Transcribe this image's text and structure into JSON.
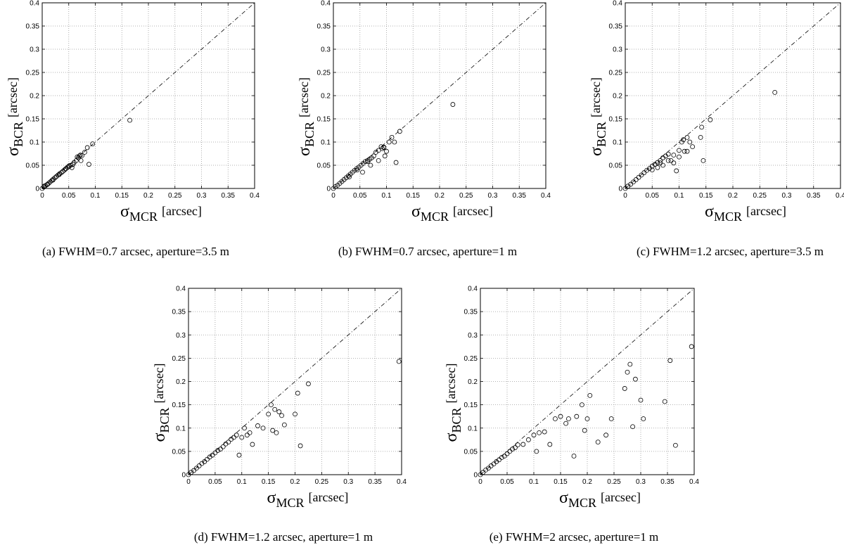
{
  "figure": {
    "axis_label_unit": "[arcsec]",
    "x_symbol": "σ",
    "x_subscript": "MCR",
    "y_symbol": "σ",
    "y_subscript": "BCR"
  },
  "chart_data": [
    {
      "id": "a",
      "type": "scatter",
      "caption": "(a)  FWHM=0.7 arcsec, aperture=3.5 m",
      "xlim": [
        0,
        0.4
      ],
      "ylim": [
        0,
        0.4
      ],
      "ticks": [
        "0",
        "0.05",
        "0.1",
        "0.15",
        "0.2",
        "0.25",
        "0.3",
        "0.35",
        "0.4"
      ],
      "grid": true,
      "reference_line": "y = x (dash-dot)",
      "points": [
        [
          0,
          0
        ],
        [
          0.003,
          0.003
        ],
        [
          0.006,
          0.006
        ],
        [
          0.009,
          0.008
        ],
        [
          0.012,
          0.011
        ],
        [
          0.015,
          0.014
        ],
        [
          0.018,
          0.017
        ],
        [
          0.021,
          0.02
        ],
        [
          0.024,
          0.023
        ],
        [
          0.027,
          0.026
        ],
        [
          0.03,
          0.029
        ],
        [
          0.033,
          0.032
        ],
        [
          0.036,
          0.034
        ],
        [
          0.039,
          0.037
        ],
        [
          0.042,
          0.04
        ],
        [
          0.045,
          0.043
        ],
        [
          0.048,
          0.046
        ],
        [
          0.051,
          0.049
        ],
        [
          0.054,
          0.05
        ],
        [
          0.058,
          0.052
        ],
        [
          0.06,
          0.056
        ],
        [
          0.064,
          0.06
        ],
        [
          0.068,
          0.066
        ],
        [
          0.07,
          0.07
        ],
        [
          0.072,
          0.072
        ],
        [
          0.075,
          0.071
        ],
        [
          0.08,
          0.078
        ],
        [
          0.085,
          0.088
        ],
        [
          0.088,
          0.052
        ],
        [
          0.095,
          0.096
        ],
        [
          0.165,
          0.147
        ],
        [
          0.004,
          0.005
        ],
        [
          0.01,
          0.009
        ],
        [
          0.02,
          0.018
        ],
        [
          0.032,
          0.03
        ],
        [
          0.044,
          0.042
        ],
        [
          0.05,
          0.047
        ],
        [
          0.056,
          0.045
        ],
        [
          0.066,
          0.068
        ],
        [
          0.073,
          0.06
        ]
      ]
    },
    {
      "id": "b",
      "type": "scatter",
      "caption": "(b)  FWHM=0.7 arcsec, aperture=1 m",
      "xlim": [
        0,
        0.4
      ],
      "ylim": [
        0,
        0.4
      ],
      "ticks": [
        "0",
        "0.05",
        "0.1",
        "0.15",
        "0.2",
        "0.25",
        "0.3",
        "0.35",
        "0.4"
      ],
      "grid": true,
      "reference_line": "y = x (dash-dot)",
      "points": [
        [
          0,
          0
        ],
        [
          0.004,
          0.004
        ],
        [
          0.008,
          0.007
        ],
        [
          0.012,
          0.011
        ],
        [
          0.016,
          0.015
        ],
        [
          0.02,
          0.019
        ],
        [
          0.024,
          0.023
        ],
        [
          0.028,
          0.027
        ],
        [
          0.032,
          0.031
        ],
        [
          0.036,
          0.035
        ],
        [
          0.04,
          0.039
        ],
        [
          0.044,
          0.043
        ],
        [
          0.048,
          0.046
        ],
        [
          0.052,
          0.05
        ],
        [
          0.056,
          0.054
        ],
        [
          0.06,
          0.058
        ],
        [
          0.064,
          0.06
        ],
        [
          0.068,
          0.063
        ],
        [
          0.072,
          0.066
        ],
        [
          0.076,
          0.07
        ],
        [
          0.08,
          0.078
        ],
        [
          0.085,
          0.082
        ],
        [
          0.09,
          0.09
        ],
        [
          0.092,
          0.086
        ],
        [
          0.095,
          0.089
        ],
        [
          0.097,
          0.07
        ],
        [
          0.1,
          0.08
        ],
        [
          0.105,
          0.1
        ],
        [
          0.11,
          0.11
        ],
        [
          0.115,
          0.1
        ],
        [
          0.118,
          0.056
        ],
        [
          0.125,
          0.123
        ],
        [
          0.225,
          0.181
        ],
        [
          0.055,
          0.035
        ],
        [
          0.045,
          0.04
        ],
        [
          0.07,
          0.05
        ],
        [
          0.085,
          0.06
        ],
        [
          0.03,
          0.025
        ],
        [
          0.065,
          0.058
        ],
        [
          0.095,
          0.088
        ]
      ]
    },
    {
      "id": "c",
      "type": "scatter",
      "caption": "(c)  FWHM=1.2 arcsec, aperture=3.5 m",
      "xlim": [
        0,
        0.4
      ],
      "ylim": [
        0,
        0.4
      ],
      "ticks": [
        "0",
        "0.05",
        "0.1",
        "0.15",
        "0.2",
        "0.25",
        "0.3",
        "0.35",
        "0.4"
      ],
      "grid": true,
      "reference_line": "y = x (dash-dot)",
      "points": [
        [
          0,
          0
        ],
        [
          0.005,
          0.005
        ],
        [
          0.01,
          0.009
        ],
        [
          0.015,
          0.014
        ],
        [
          0.02,
          0.019
        ],
        [
          0.025,
          0.024
        ],
        [
          0.03,
          0.029
        ],
        [
          0.035,
          0.034
        ],
        [
          0.04,
          0.039
        ],
        [
          0.045,
          0.043
        ],
        [
          0.05,
          0.048
        ],
        [
          0.055,
          0.052
        ],
        [
          0.06,
          0.056
        ],
        [
          0.065,
          0.06
        ],
        [
          0.07,
          0.066
        ],
        [
          0.075,
          0.07
        ],
        [
          0.08,
          0.074
        ],
        [
          0.085,
          0.06
        ],
        [
          0.09,
          0.072
        ],
        [
          0.095,
          0.038
        ],
        [
          0.1,
          0.082
        ],
        [
          0.105,
          0.1
        ],
        [
          0.108,
          0.105
        ],
        [
          0.11,
          0.08
        ],
        [
          0.115,
          0.11
        ],
        [
          0.12,
          0.1
        ],
        [
          0.125,
          0.09
        ],
        [
          0.14,
          0.11
        ],
        [
          0.142,
          0.132
        ],
        [
          0.145,
          0.06
        ],
        [
          0.158,
          0.148
        ],
        [
          0.278,
          0.207
        ],
        [
          0.06,
          0.045
        ],
        [
          0.07,
          0.05
        ],
        [
          0.08,
          0.06
        ],
        [
          0.09,
          0.055
        ],
        [
          0.115,
          0.08
        ],
        [
          0.05,
          0.04
        ],
        [
          0.065,
          0.055
        ],
        [
          0.1,
          0.068
        ]
      ]
    },
    {
      "id": "d",
      "type": "scatter",
      "caption": "(d)  FWHM=1.2 arcsec, aperture=1 m",
      "xlim": [
        0,
        0.4
      ],
      "ylim": [
        0,
        0.4
      ],
      "ticks": [
        "0",
        "0.05",
        "0.1",
        "0.15",
        "0.2",
        "0.25",
        "0.3",
        "0.35",
        "0.4"
      ],
      "grid": true,
      "reference_line": "y = x (dash-dot)",
      "points": [
        [
          0,
          0
        ],
        [
          0.005,
          0.005
        ],
        [
          0.01,
          0.009
        ],
        [
          0.015,
          0.014
        ],
        [
          0.02,
          0.019
        ],
        [
          0.025,
          0.024
        ],
        [
          0.03,
          0.028
        ],
        [
          0.035,
          0.033
        ],
        [
          0.04,
          0.038
        ],
        [
          0.045,
          0.042
        ],
        [
          0.05,
          0.047
        ],
        [
          0.055,
          0.052
        ],
        [
          0.06,
          0.055
        ],
        [
          0.065,
          0.06
        ],
        [
          0.07,
          0.066
        ],
        [
          0.075,
          0.07
        ],
        [
          0.08,
          0.076
        ],
        [
          0.085,
          0.08
        ],
        [
          0.09,
          0.085
        ],
        [
          0.095,
          0.042
        ],
        [
          0.1,
          0.08
        ],
        [
          0.105,
          0.1
        ],
        [
          0.11,
          0.085
        ],
        [
          0.115,
          0.09
        ],
        [
          0.12,
          0.065
        ],
        [
          0.13,
          0.105
        ],
        [
          0.14,
          0.1
        ],
        [
          0.15,
          0.13
        ],
        [
          0.155,
          0.15
        ],
        [
          0.158,
          0.095
        ],
        [
          0.162,
          0.14
        ],
        [
          0.165,
          0.09
        ],
        [
          0.17,
          0.135
        ],
        [
          0.175,
          0.127
        ],
        [
          0.18,
          0.107
        ],
        [
          0.2,
          0.13
        ],
        [
          0.205,
          0.175
        ],
        [
          0.21,
          0.062
        ],
        [
          0.225,
          0.195
        ],
        [
          0.395,
          0.243
        ]
      ]
    },
    {
      "id": "e",
      "type": "scatter",
      "caption": "(e)  FWHM=2 arcsec, aperture=1 m",
      "xlim": [
        0,
        0.4
      ],
      "ylim": [
        0,
        0.4
      ],
      "ticks": [
        "0",
        "0.05",
        "0.1",
        "0.15",
        "0.2",
        "0.25",
        "0.3",
        "0.35",
        "0.4"
      ],
      "grid": true,
      "reference_line": "y = x (dash-dot)",
      "points": [
        [
          0,
          0
        ],
        [
          0.005,
          0.005
        ],
        [
          0.01,
          0.01
        ],
        [
          0.015,
          0.014
        ],
        [
          0.02,
          0.019
        ],
        [
          0.025,
          0.023
        ],
        [
          0.03,
          0.028
        ],
        [
          0.035,
          0.032
        ],
        [
          0.04,
          0.037
        ],
        [
          0.045,
          0.04
        ],
        [
          0.05,
          0.045
        ],
        [
          0.055,
          0.05
        ],
        [
          0.06,
          0.055
        ],
        [
          0.065,
          0.058
        ],
        [
          0.07,
          0.064
        ],
        [
          0.08,
          0.065
        ],
        [
          0.09,
          0.075
        ],
        [
          0.1,
          0.085
        ],
        [
          0.105,
          0.05
        ],
        [
          0.11,
          0.09
        ],
        [
          0.12,
          0.092
        ],
        [
          0.13,
          0.065
        ],
        [
          0.14,
          0.12
        ],
        [
          0.15,
          0.125
        ],
        [
          0.16,
          0.11
        ],
        [
          0.165,
          0.12
        ],
        [
          0.175,
          0.04
        ],
        [
          0.18,
          0.125
        ],
        [
          0.19,
          0.15
        ],
        [
          0.195,
          0.095
        ],
        [
          0.2,
          0.12
        ],
        [
          0.205,
          0.17
        ],
        [
          0.22,
          0.07
        ],
        [
          0.235,
          0.085
        ],
        [
          0.245,
          0.12
        ],
        [
          0.27,
          0.185
        ],
        [
          0.275,
          0.22
        ],
        [
          0.28,
          0.237
        ],
        [
          0.285,
          0.103
        ],
        [
          0.29,
          0.205
        ],
        [
          0.3,
          0.16
        ],
        [
          0.305,
          0.12
        ],
        [
          0.345,
          0.157
        ],
        [
          0.355,
          0.245
        ],
        [
          0.365,
          0.063
        ],
        [
          0.395,
          0.275
        ]
      ]
    }
  ]
}
